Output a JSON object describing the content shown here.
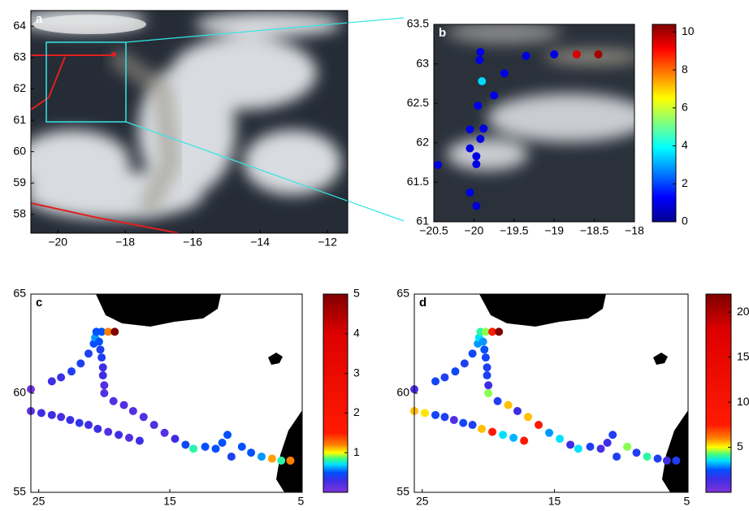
{
  "chart_data": [
    {
      "type": "map",
      "label": "a",
      "xlim": [
        -20.8,
        -11.4
      ],
      "ylim": [
        57.4,
        64.5
      ],
      "xticks": [
        {
          "value": -20,
          "label": "−20"
        },
        {
          "value": -18,
          "label": "−18"
        },
        {
          "value": -16,
          "label": "−16"
        },
        {
          "value": -14,
          "label": "−14"
        },
        {
          "value": -12,
          "label": "−12"
        }
      ],
      "yticks": [
        58,
        59,
        60,
        61,
        62,
        63,
        64
      ]
    },
    {
      "type": "scatter",
      "label": "b",
      "xlim": [
        -20.5,
        -18
      ],
      "ylim": [
        61,
        63.5
      ],
      "xticks": [
        {
          "value": -20.5,
          "label": "−20.5"
        },
        {
          "value": -20,
          "label": "−20"
        },
        {
          "value": -19.5,
          "label": "−19.5"
        },
        {
          "value": -19,
          "label": "−19"
        },
        {
          "value": -18.5,
          "label": "−18.5"
        },
        {
          "value": -18,
          "label": "−18"
        }
      ],
      "yticks": [
        61,
        61.5,
        62,
        62.5,
        63,
        63.5
      ],
      "x": [
        -19.92,
        -19.93,
        -19.9,
        -19.75,
        -19.95,
        -19.62,
        -19.35,
        -19.0,
        -18.72,
        -18.45,
        -20.05,
        -19.88,
        -19.92,
        -20.05,
        -19.97,
        -19.97,
        -20.45,
        -20.05,
        -19.97
      ],
      "y": [
        63.15,
        63.05,
        62.78,
        62.6,
        62.47,
        62.88,
        63.1,
        63.12,
        63.12,
        63.12,
        62.17,
        62.18,
        62.05,
        61.93,
        61.83,
        61.73,
        61.72,
        61.37,
        61.2
      ],
      "values": [
        1,
        1,
        3.5,
        1,
        1,
        1,
        1,
        1,
        9.5,
        10,
        1,
        1,
        1,
        1,
        1,
        1,
        1,
        1,
        0.8
      ],
      "clim": [
        0,
        10.4
      ],
      "cticks": [
        0,
        2,
        4,
        6,
        8,
        10
      ],
      "colorscale": [
        [
          0,
          "#00008f"
        ],
        [
          1.3,
          "#0000ff"
        ],
        [
          3.9,
          "#00ffff"
        ],
        [
          6.5,
          "#ffff00"
        ],
        [
          9.1,
          "#ff0000"
        ],
        [
          10.4,
          "#800000"
        ]
      ]
    },
    {
      "type": "scatter",
      "label": "c",
      "xlim": [
        25.6,
        4.9
      ],
      "ylim": [
        55,
        65
      ],
      "xticks": [
        25,
        15,
        5
      ],
      "yticks": [
        55,
        60,
        65
      ],
      "x": [
        25.6,
        24.8,
        24.0,
        23.3,
        22.6,
        21.9,
        21.2,
        20.5,
        19.7,
        18.9,
        18.1,
        17.3,
        25.6,
        24.0,
        23.3,
        22.5,
        21.8,
        21.2,
        20.8,
        20.7,
        20.6,
        20.2,
        19.7,
        19.2,
        20.4,
        20.3,
        20.2,
        20.1,
        20.1,
        20.0,
        20.0,
        19.3,
        18.5,
        17.8,
        17.0,
        16.2,
        15.4,
        14.6,
        13.8,
        13.2,
        12.3,
        11.5,
        11.0,
        10.6,
        10.3,
        9.5,
        8.8,
        8.0,
        7.2,
        6.5,
        5.8
      ],
      "y": [
        59.1,
        59.0,
        58.9,
        58.8,
        58.65,
        58.5,
        58.4,
        58.2,
        58.05,
        57.9,
        57.75,
        57.6,
        60.2,
        60.6,
        60.8,
        61.1,
        61.5,
        62.0,
        62.5,
        62.8,
        63.1,
        63.1,
        63.1,
        63.1,
        62.6,
        62.2,
        61.8,
        61.3,
        60.9,
        60.4,
        60.0,
        59.6,
        59.4,
        59.1,
        58.8,
        58.4,
        58.0,
        57.7,
        57.4,
        57.2,
        57.3,
        57.2,
        57.5,
        57.9,
        56.8,
        57.3,
        57.0,
        56.8,
        56.7,
        56.6,
        56.6
      ],
      "values": [
        0.15,
        0.3,
        0.3,
        0.25,
        0.3,
        0.35,
        0.3,
        0.3,
        0.2,
        0.3,
        0.2,
        0.3,
        0.05,
        0.3,
        0.3,
        0.4,
        0.4,
        0.4,
        0.5,
        0.6,
        0.5,
        0.5,
        1.2,
        5,
        0.5,
        0.4,
        0.4,
        0.3,
        0.3,
        0.2,
        0.2,
        0.2,
        0.2,
        0.2,
        0.2,
        0.2,
        0.2,
        0.3,
        0.45,
        0.8,
        0.5,
        0.5,
        0.5,
        0.5,
        0.4,
        0.5,
        0.5,
        0.6,
        1.15,
        0.8,
        1.2
      ],
      "clim": [
        0,
        5
      ],
      "cticks": [
        1,
        2,
        3,
        4,
        5
      ],
      "colorscale": [
        [
          0,
          "#7d33d9"
        ],
        [
          0.3,
          "#3d2ee6"
        ],
        [
          0.5,
          "#0050ff"
        ],
        [
          0.7,
          "#00e0ff"
        ],
        [
          0.85,
          "#40ff80"
        ],
        [
          1.0,
          "#ffff00"
        ],
        [
          1.2,
          "#ff8000"
        ],
        [
          1.5,
          "#ff1a00"
        ],
        [
          4,
          "#dd0000"
        ],
        [
          5,
          "#800000"
        ]
      ]
    },
    {
      "type": "scatter",
      "label": "d",
      "xlim": [
        25.6,
        4.9
      ],
      "ylim": [
        55,
        65
      ],
      "xticks": [
        25,
        15,
        5
      ],
      "yticks": [
        55,
        60,
        65
      ],
      "x": [
        25.6,
        24.8,
        24.0,
        23.3,
        22.6,
        21.9,
        21.2,
        20.5,
        19.7,
        18.9,
        18.1,
        17.3,
        25.6,
        24.0,
        23.3,
        22.5,
        21.8,
        21.2,
        20.8,
        20.7,
        20.6,
        20.2,
        19.7,
        19.2,
        20.4,
        20.3,
        20.2,
        20.1,
        20.1,
        20.0,
        20.0,
        19.3,
        18.5,
        17.8,
        17.0,
        16.2,
        15.4,
        14.6,
        13.8,
        13.2,
        12.3,
        11.5,
        11.0,
        10.6,
        10.3,
        9.5,
        8.8,
        8.0,
        7.2,
        6.5,
        5.8
      ],
      "y": [
        59.1,
        59.0,
        58.9,
        58.8,
        58.65,
        58.5,
        58.4,
        58.2,
        58.05,
        57.9,
        57.75,
        57.6,
        60.2,
        60.6,
        60.8,
        61.1,
        61.5,
        62.0,
        62.5,
        62.8,
        63.1,
        63.1,
        63.1,
        63.1,
        62.6,
        62.2,
        61.8,
        61.3,
        60.9,
        60.4,
        60.0,
        59.6,
        59.4,
        59.1,
        58.8,
        58.4,
        58.0,
        57.7,
        57.4,
        57.2,
        57.3,
        57.2,
        57.5,
        57.9,
        56.8,
        57.3,
        57.0,
        56.8,
        56.7,
        56.6,
        56.6
      ],
      "values": [
        5.5,
        5.2,
        2.2,
        2.0,
        1.0,
        2.2,
        2.0,
        5.5,
        8.0,
        3.5,
        3.2,
        8.5,
        1.2,
        2.2,
        2.0,
        2.2,
        2.0,
        2.2,
        3.0,
        3.5,
        4.0,
        4.5,
        7.5,
        22,
        3.0,
        2.5,
        2.2,
        2.0,
        2.0,
        1.5,
        4.5,
        2.0,
        5.5,
        1.5,
        5.5,
        8.0,
        3.0,
        3.5,
        1.5,
        3.5,
        2.0,
        1.2,
        1.5,
        2.0,
        2.0,
        4.5,
        2.0,
        4.0,
        2.0,
        1.5,
        2.0
      ],
      "clim": [
        0,
        22
      ],
      "cticks": [
        5,
        10,
        15,
        20
      ],
      "colorscale": [
        [
          0,
          "#7d33d9"
        ],
        [
          1.5,
          "#3d2ee6"
        ],
        [
          2.5,
          "#0050ff"
        ],
        [
          3.5,
          "#00e0ff"
        ],
        [
          4.2,
          "#40ff80"
        ],
        [
          5,
          "#ffff00"
        ],
        [
          6,
          "#ff8000"
        ],
        [
          7.5,
          "#ff1a00"
        ],
        [
          18,
          "#dd0000"
        ],
        [
          22,
          "#800000"
        ]
      ]
    }
  ]
}
